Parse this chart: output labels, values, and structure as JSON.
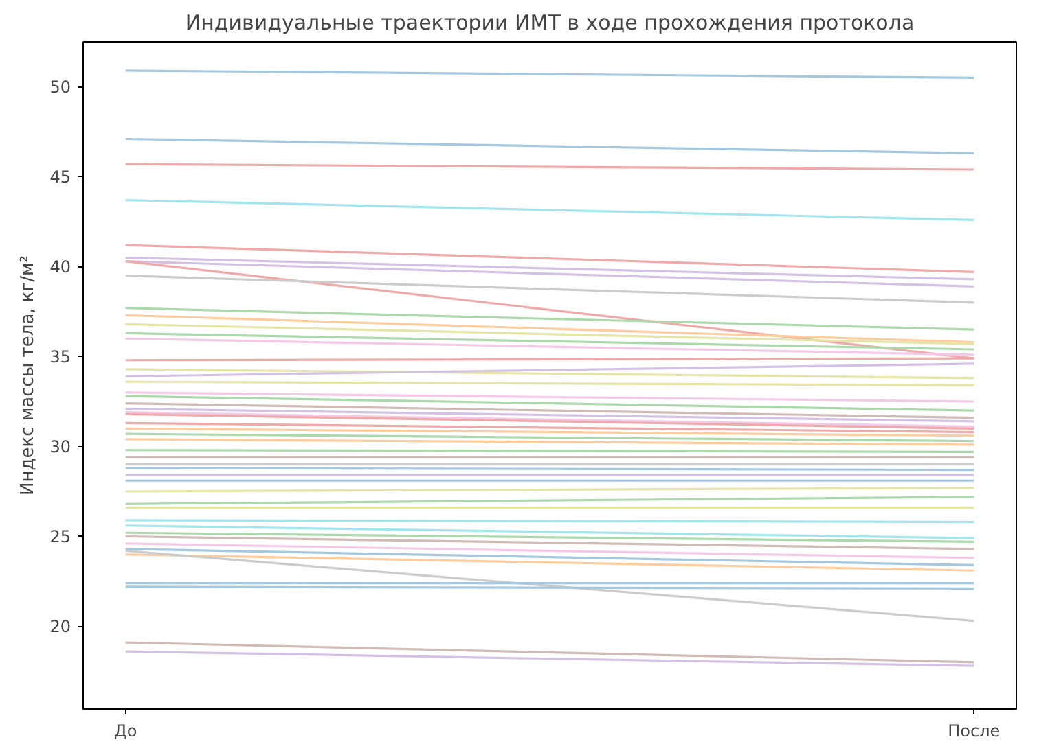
{
  "chart_data": {
    "type": "line",
    "title": "Индивидуальные траектории ИМТ в ходе прохождения протокола",
    "ylabel": "Индекс массы тела, кг/м²",
    "categories": [
      "До",
      "После"
    ],
    "ylim": [
      15.4,
      52.5
    ],
    "yticks": [
      20,
      25,
      30,
      35,
      40,
      45,
      50
    ],
    "grid": false,
    "marker": "none",
    "line_style": "solid",
    "series": [
      {
        "color": "#a5c8e1",
        "values": [
          50.9,
          50.5
        ]
      },
      {
        "color": "#a5c8e1",
        "values": [
          47.1,
          46.3
        ]
      },
      {
        "color": "#efa9a9",
        "values": [
          45.7,
          45.4
        ]
      },
      {
        "color": "#a2e5ec",
        "values": [
          43.7,
          42.6
        ]
      },
      {
        "color": "#efa9a9",
        "values": [
          41.2,
          39.7
        ]
      },
      {
        "color": "#d4c2e5",
        "values": [
          40.5,
          39.3
        ]
      },
      {
        "color": "#d4c2e5",
        "values": [
          40.3,
          38.9
        ]
      },
      {
        "color": "#efa9a9",
        "values": [
          40.3,
          34.9
        ]
      },
      {
        "color": "#cccccc",
        "values": [
          39.5,
          38.0
        ]
      },
      {
        "color": "#abd9ab",
        "values": [
          37.7,
          36.5
        ]
      },
      {
        "color": "#ffcc9e",
        "values": [
          37.3,
          35.8
        ]
      },
      {
        "color": "#e4e5a7",
        "values": [
          36.8,
          35.7
        ]
      },
      {
        "color": "#abd9ab",
        "values": [
          36.3,
          35.4
        ]
      },
      {
        "color": "#f4c9e7",
        "values": [
          36.0,
          35.1
        ]
      },
      {
        "color": "#efa9a9",
        "values": [
          34.8,
          34.9
        ]
      },
      {
        "color": "#e4e5a7",
        "values": [
          34.3,
          33.8
        ]
      },
      {
        "color": "#d4c2e5",
        "values": [
          33.9,
          34.6
        ]
      },
      {
        "color": "#e4e5a7",
        "values": [
          33.6,
          33.4
        ]
      },
      {
        "color": "#f4c9e7",
        "values": [
          33.0,
          32.5
        ]
      },
      {
        "color": "#abd9ab",
        "values": [
          32.8,
          32.0
        ]
      },
      {
        "color": "#d1bbb7",
        "values": [
          32.4,
          31.6
        ]
      },
      {
        "color": "#d4c2e5",
        "values": [
          32.1,
          31.4
        ]
      },
      {
        "color": "#f4c9e7",
        "values": [
          31.9,
          31.1
        ]
      },
      {
        "color": "#efa9a9",
        "values": [
          31.8,
          31.0
        ]
      },
      {
        "color": "#efa9a9",
        "values": [
          31.3,
          30.8
        ]
      },
      {
        "color": "#ffcc9e",
        "values": [
          31.0,
          30.6
        ]
      },
      {
        "color": "#abd9ab",
        "values": [
          30.7,
          30.3
        ]
      },
      {
        "color": "#ffcc9e",
        "values": [
          30.4,
          30.1
        ]
      },
      {
        "color": "#abd9ab",
        "values": [
          29.8,
          29.7
        ]
      },
      {
        "color": "#d1bbb7",
        "values": [
          29.4,
          29.4
        ]
      },
      {
        "color": "#cccccc",
        "values": [
          29.0,
          29.0
        ]
      },
      {
        "color": "#a5c8e1",
        "values": [
          28.8,
          28.7
        ]
      },
      {
        "color": "#d4c2e5",
        "values": [
          28.4,
          28.4
        ]
      },
      {
        "color": "#a5c8e1",
        "values": [
          28.1,
          28.1
        ]
      },
      {
        "color": "#e4e5a7",
        "values": [
          27.5,
          27.7
        ]
      },
      {
        "color": "#abd9ab",
        "values": [
          26.8,
          27.2
        ]
      },
      {
        "color": "#e4e5a7",
        "values": [
          26.6,
          26.6
        ]
      },
      {
        "color": "#a2e5ec",
        "values": [
          25.9,
          25.8
        ]
      },
      {
        "color": "#a2e5ec",
        "values": [
          25.6,
          24.9
        ]
      },
      {
        "color": "#abd9ab",
        "values": [
          25.2,
          24.7
        ]
      },
      {
        "color": "#d1bbb7",
        "values": [
          25.0,
          24.3
        ]
      },
      {
        "color": "#f4c9e7",
        "values": [
          24.6,
          23.8
        ]
      },
      {
        "color": "#a5c8e1",
        "values": [
          24.3,
          23.4
        ]
      },
      {
        "color": "#ffcc9e",
        "values": [
          24.0,
          23.1
        ]
      },
      {
        "color": "#cccccc",
        "values": [
          24.2,
          20.3
        ]
      },
      {
        "color": "#a5c8e1",
        "values": [
          22.4,
          22.4
        ]
      },
      {
        "color": "#a5c8e1",
        "values": [
          22.2,
          22.1
        ]
      },
      {
        "color": "#d1bbb7",
        "values": [
          19.1,
          18.0
        ]
      },
      {
        "color": "#d4c2e5",
        "values": [
          18.6,
          17.8
        ]
      }
    ]
  }
}
